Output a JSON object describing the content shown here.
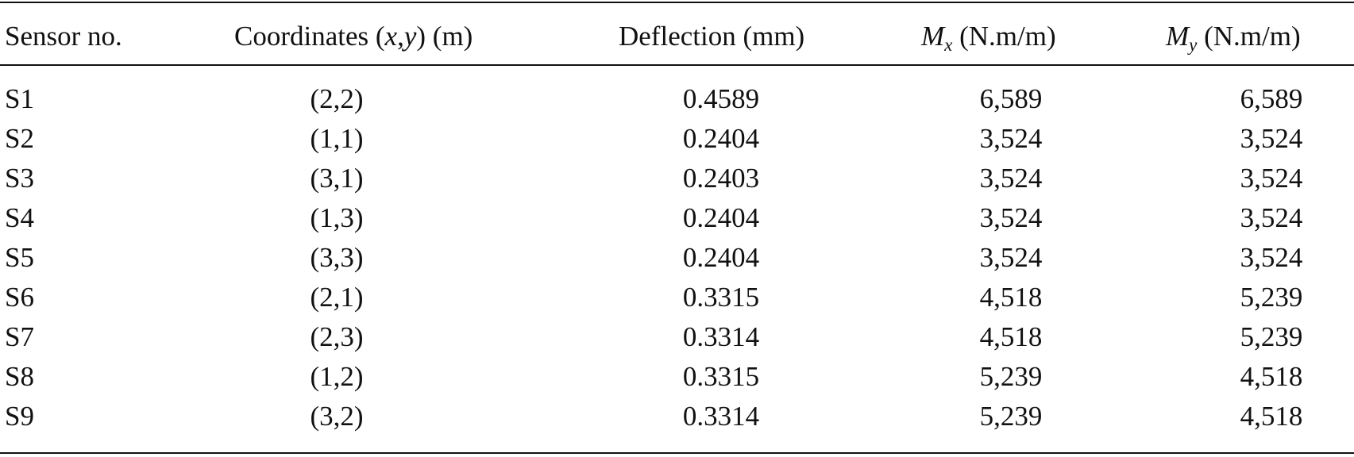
{
  "table": {
    "headers": {
      "sensor": "Sensor no.",
      "coords_prefix": "Coordinates (",
      "coords_x": "x",
      "coords_comma": ",",
      "coords_y": "y",
      "coords_suffix": ") (m)",
      "deflection": "Deflection (mm)",
      "mx_symbol": "M",
      "mx_sub": "x",
      "mx_unit": " (N.m/m)",
      "my_symbol": "M",
      "my_sub": "y",
      "my_unit": " (N.m/m)"
    },
    "rows": [
      {
        "sensor": "S1",
        "coords": "(2,2)",
        "deflection": "0.4589",
        "mx": "6,589",
        "my": "6,589"
      },
      {
        "sensor": "S2",
        "coords": "(1,1)",
        "deflection": "0.2404",
        "mx": "3,524",
        "my": "3,524"
      },
      {
        "sensor": "S3",
        "coords": "(3,1)",
        "deflection": "0.2403",
        "mx": "3,524",
        "my": "3,524"
      },
      {
        "sensor": "S4",
        "coords": "(1,3)",
        "deflection": "0.2404",
        "mx": "3,524",
        "my": "3,524"
      },
      {
        "sensor": "S5",
        "coords": "(3,3)",
        "deflection": "0.2404",
        "mx": "3,524",
        "my": "3,524"
      },
      {
        "sensor": "S6",
        "coords": "(2,1)",
        "deflection": "0.3315",
        "mx": "4,518",
        "my": "5,239"
      },
      {
        "sensor": "S7",
        "coords": "(2,3)",
        "deflection": "0.3314",
        "mx": "4,518",
        "my": "5,239"
      },
      {
        "sensor": "S8",
        "coords": "(1,2)",
        "deflection": "0.3315",
        "mx": "5,239",
        "my": "4,518"
      },
      {
        "sensor": "S9",
        "coords": "(3,2)",
        "deflection": "0.3314",
        "mx": "5,239",
        "my": "4,518"
      }
    ]
  }
}
